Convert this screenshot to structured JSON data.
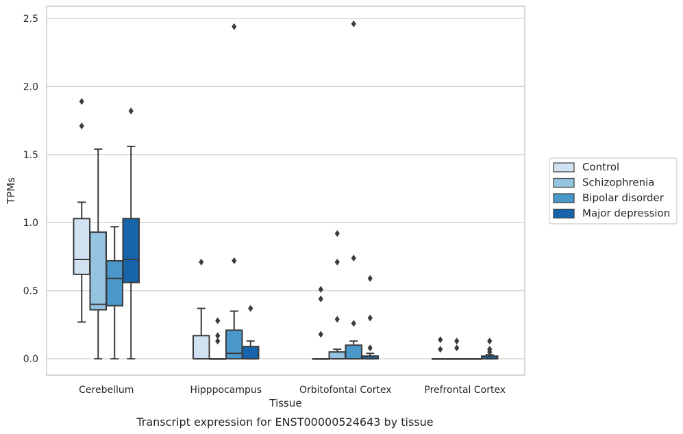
{
  "caption": "Transcript expression for ENST00000524643 by tissue",
  "chart_data": {
    "type": "box",
    "xlabel": "Tissue",
    "ylabel": "TPMs",
    "ylim": [
      -0.12,
      2.59
    ],
    "yticks": [
      0.0,
      0.5,
      1.0,
      1.5,
      2.0,
      2.5
    ],
    "ytick_labels": [
      "0.0",
      "0.5",
      "1.0",
      "1.5",
      "2.0",
      "2.5"
    ],
    "grid": true,
    "legend_position": "right",
    "categories": [
      "Cerebellum",
      "Hipppocampus",
      "Orbitofontal Cortex",
      "Prefrontal Cortex"
    ],
    "series": [
      {
        "name": "Control",
        "color": "#d0e1f2",
        "boxes": [
          {
            "whislo": 0.27,
            "q1": 0.62,
            "med": 0.73,
            "q3": 1.03,
            "whishi": 1.15,
            "fliers": [
              1.71,
              1.89
            ]
          },
          {
            "whislo": 0.0,
            "q1": 0.0,
            "med": 0.0,
            "q3": 0.17,
            "whishi": 0.37,
            "fliers": [
              0.71
            ]
          },
          {
            "whislo": 0.0,
            "q1": 0.0,
            "med": 0.0,
            "q3": 0.0,
            "whishi": 0.0,
            "fliers": [
              0.18,
              0.44,
              0.51
            ]
          },
          {
            "whislo": 0.0,
            "q1": 0.0,
            "med": 0.0,
            "q3": 0.0,
            "whishi": 0.0,
            "fliers": [
              0.07,
              0.14
            ]
          }
        ]
      },
      {
        "name": "Schizophrenia",
        "color": "#94c4df",
        "boxes": [
          {
            "whislo": 0.0,
            "q1": 0.36,
            "med": 0.4,
            "q3": 0.93,
            "whishi": 1.54,
            "fliers": []
          },
          {
            "whislo": 0.0,
            "q1": 0.0,
            "med": 0.0,
            "q3": 0.0,
            "whishi": 0.0,
            "fliers": [
              0.13,
              0.17,
              0.28
            ]
          },
          {
            "whislo": 0.0,
            "q1": 0.0,
            "med": 0.0,
            "q3": 0.05,
            "whishi": 0.07,
            "fliers": [
              0.29,
              0.71,
              0.92
            ]
          },
          {
            "whislo": 0.0,
            "q1": 0.0,
            "med": 0.0,
            "q3": 0.0,
            "whishi": 0.0,
            "fliers": [
              0.08,
              0.13
            ]
          }
        ]
      },
      {
        "name": "Bipolar disorder",
        "color": "#4a98c9",
        "boxes": [
          {
            "whislo": 0.0,
            "q1": 0.39,
            "med": 0.59,
            "q3": 0.72,
            "whishi": 0.97,
            "fliers": []
          },
          {
            "whislo": 0.0,
            "q1": 0.0,
            "med": 0.04,
            "q3": 0.21,
            "whishi": 0.35,
            "fliers": [
              0.72,
              2.44
            ]
          },
          {
            "whislo": 0.0,
            "q1": 0.0,
            "med": 0.0,
            "q3": 0.1,
            "whishi": 0.13,
            "fliers": [
              0.26,
              0.74,
              2.46
            ]
          },
          {
            "whislo": 0.0,
            "q1": 0.0,
            "med": 0.0,
            "q3": 0.0,
            "whishi": 0.0,
            "fliers": []
          }
        ]
      },
      {
        "name": "Major depression",
        "color": "#1764ab",
        "boxes": [
          {
            "whislo": 0.0,
            "q1": 0.56,
            "med": 0.73,
            "q3": 1.03,
            "whishi": 1.56,
            "fliers": [
              1.82
            ]
          },
          {
            "whislo": 0.0,
            "q1": 0.0,
            "med": 0.0,
            "q3": 0.09,
            "whishi": 0.13,
            "fliers": [
              0.37
            ]
          },
          {
            "whislo": 0.0,
            "q1": 0.0,
            "med": 0.0,
            "q3": 0.02,
            "whishi": 0.04,
            "fliers": [
              0.08,
              0.3,
              0.59
            ]
          },
          {
            "whislo": 0.0,
            "q1": 0.0,
            "med": 0.0,
            "q3": 0.02,
            "whishi": 0.03,
            "fliers": [
              0.05,
              0.07,
              0.13
            ]
          }
        ]
      }
    ]
  }
}
